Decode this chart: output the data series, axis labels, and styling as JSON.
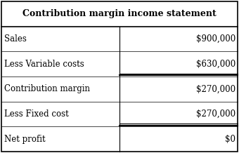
{
  "title": "Contribution margin income statement",
  "rows": [
    {
      "label": "Sales",
      "value": "$900,000",
      "underline": false
    },
    {
      "label": "Less Variable costs",
      "value": "$630,000",
      "underline": true
    },
    {
      "label": "Contribution margin",
      "value": "$270,000",
      "underline": false
    },
    {
      "label": "Less Fixed cost",
      "value": "$270,000",
      "underline": true
    },
    {
      "label": "Net profit",
      "value": "$0",
      "underline": false
    }
  ],
  "col_split": 0.5,
  "bg_color": "#ffffff",
  "border_color": "#000000",
  "title_fontsize": 9.0,
  "row_fontsize": 8.5,
  "font_family": "serif"
}
